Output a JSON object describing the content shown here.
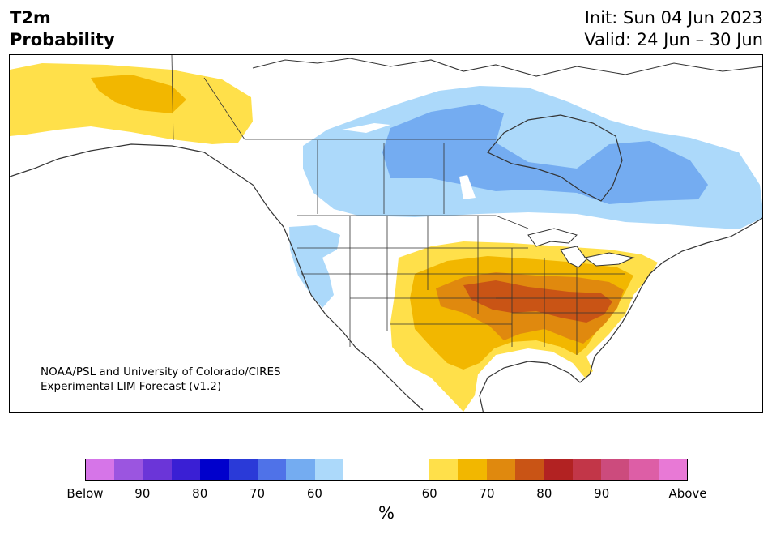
{
  "title": {
    "line1": "T2m",
    "line2": "Probability"
  },
  "dates": {
    "init": "Init: Sun 04 Jun 2023",
    "valid": "Valid: 24 Jun – 30 Jun"
  },
  "credit": {
    "line1": "NOAA/PSL and University of Colorado/CIRES",
    "line2": "Experimental LIM Forecast (v1.2)"
  },
  "colorbar": {
    "unit": "%",
    "tick_labels": [
      "Below",
      "90",
      "80",
      "70",
      "60",
      "60",
      "70",
      "80",
      "90",
      "Above"
    ],
    "below_colors": [
      "#d675e8",
      "#9b55e0",
      "#6b35d8",
      "#3a1fd4",
      "#0000cc",
      "#2a3ad8",
      "#4f72e8",
      "#74acf1",
      "#acd9fa"
    ],
    "neutral_color": "#ffffff",
    "above_colors": [
      "#ffe04a",
      "#f2b700",
      "#e0890e",
      "#c95415",
      "#b22222",
      "#c23648",
      "#cc4b7d",
      "#dd5ea6",
      "#e879d6"
    ]
  },
  "map_colors": {
    "below_60": "#acd9fa",
    "below_70": "#74acf1",
    "above_60": "#ffe04a",
    "above_70": "#f2b700",
    "above_80": "#e0890e",
    "coast": "#333333",
    "border": "#333333"
  }
}
